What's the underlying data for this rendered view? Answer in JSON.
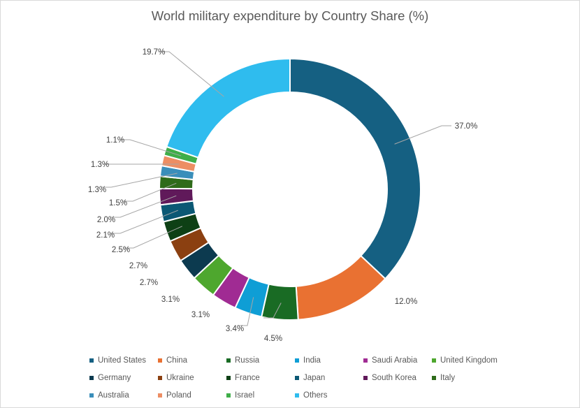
{
  "chart_data": {
    "type": "pie",
    "variant": "doughnut",
    "title": "World military expenditure by Country Share (%)",
    "legend_position": "bottom",
    "slices": [
      {
        "label": "United States",
        "value": 37.0,
        "display": "37.0%",
        "color": "#156082"
      },
      {
        "label": "China",
        "value": 12.0,
        "display": "12.0%",
        "color": "#E97132"
      },
      {
        "label": "Russia",
        "value": 4.5,
        "display": "4.5%",
        "color": "#196B24"
      },
      {
        "label": "India",
        "value": 3.4,
        "display": "3.4%",
        "color": "#0F9ED5"
      },
      {
        "label": "Saudi Arabia",
        "value": 3.1,
        "display": "3.1%",
        "color": "#A02B93"
      },
      {
        "label": "United Kingdom",
        "value": 3.1,
        "display": "3.1%",
        "color": "#4EA72E"
      },
      {
        "label": "Germany",
        "value": 2.7,
        "display": "2.7%",
        "color": "#0C3A4F"
      },
      {
        "label": "Ukraine",
        "value": 2.7,
        "display": "2.7%",
        "color": "#8B4011"
      },
      {
        "label": "France",
        "value": 2.5,
        "display": "2.5%",
        "color": "#0E4015"
      },
      {
        "label": "Japan",
        "value": 2.1,
        "display": "2.1%",
        "color": "#0B5874"
      },
      {
        "label": "South Korea",
        "value": 2.0,
        "display": "2.0%",
        "color": "#60195A"
      },
      {
        "label": "Italy",
        "value": 1.5,
        "display": "1.5%",
        "color": "#2F6B1A"
      },
      {
        "label": "Australia",
        "value": 1.3,
        "display": "1.3%",
        "color": "#3A8EBA"
      },
      {
        "label": "Poland",
        "value": 1.3,
        "display": "1.3%",
        "color": "#ED8E63"
      },
      {
        "label": "Israel",
        "value": 1.1,
        "display": "1.1%",
        "color": "#3FAE49"
      },
      {
        "label": "Others",
        "value": 19.7,
        "display": "19.7%",
        "color": "#2FBCEE"
      }
    ]
  }
}
